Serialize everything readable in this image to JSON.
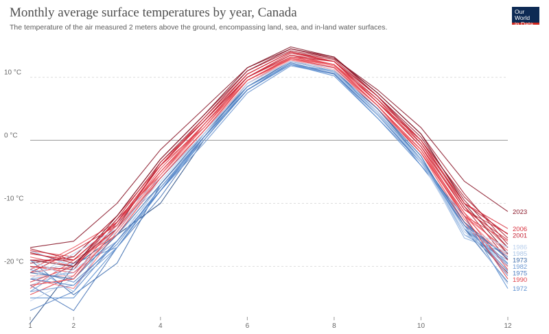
{
  "title": "Monthly average surface temperatures by year, Canada",
  "subtitle": "The temperature of the air measured 2 meters above the ground, encompassing land, sea, and in-land water surfaces.",
  "logo": {
    "line1": "Our World",
    "line2": "in Data"
  },
  "chart_data": {
    "type": "line",
    "title": "Monthly average surface temperatures by year, Canada",
    "xlabel": "",
    "ylabel": "",
    "xlim": [
      1,
      12
    ],
    "ylim": [
      -28,
      15.5
    ],
    "x_ticks": [
      1,
      2,
      4,
      6,
      8,
      10,
      12
    ],
    "y_ticks": [
      {
        "value": 10,
        "label": "10 °C"
      },
      {
        "value": 0,
        "label": "0 °C"
      },
      {
        "value": -10,
        "label": "-10 °C"
      },
      {
        "value": -20,
        "label": "-20 °C"
      }
    ],
    "grid": "horizontal dashed, solid zero line",
    "legend": "end labels on right",
    "colors": {
      "cold": "#4b7bc0",
      "light": "#a9c4e6",
      "warm": "#e8555f",
      "dark": "#8b1a2b"
    },
    "x": [
      1,
      2,
      3,
      4,
      5,
      6,
      7,
      8,
      9,
      10,
      11,
      12
    ],
    "series": [
      {
        "name": "1972",
        "color": "#5b8fd0",
        "values": [
          -25,
          -25,
          -17,
          -8,
          0,
          8,
          12,
          10.2,
          3.5,
          -4,
          -12,
          -23.5
        ]
      },
      {
        "name": "1973",
        "color": "#3a6aa8",
        "values": [
          -21,
          -22,
          -15,
          -7,
          1,
          8.5,
          12.5,
          11,
          5,
          -3,
          -13,
          -18.8
        ]
      },
      {
        "name": "1975",
        "color": "#4b7bc0",
        "values": [
          -22,
          -23,
          -16,
          -8,
          0.5,
          8,
          12.3,
          10.5,
          4,
          -3.5,
          -13.5,
          -20.7
        ]
      },
      {
        "name": "1982",
        "color": "#6e9ad3",
        "values": [
          -24,
          -23,
          -17,
          -7.5,
          0,
          8.5,
          12,
          11,
          4.5,
          -3,
          -14,
          -19.6
        ]
      },
      {
        "name": "1985",
        "color": "#a9c4e6",
        "values": [
          -19,
          -22,
          -14,
          -6,
          1,
          9,
          12.5,
          11,
          4,
          -3,
          -15,
          -17.8
        ]
      },
      {
        "name": "1986",
        "color": "#b9cfec",
        "values": [
          -22,
          -18,
          -14,
          -6.5,
          1,
          9,
          12.5,
          11.5,
          4.5,
          -3.5,
          -14,
          -16.9
        ]
      },
      {
        "name": "1990",
        "color": "#e0404a",
        "values": [
          -23,
          -22,
          -14,
          -6,
          1.5,
          9.5,
          13,
          11.5,
          5.5,
          -2,
          -12,
          -22
        ]
      },
      {
        "name": "2001",
        "color": "#c42234",
        "values": [
          -19,
          -19,
          -13,
          -4,
          3,
          10,
          13.5,
          12.5,
          7,
          -0.5,
          -10,
          -14.9
        ]
      },
      {
        "name": "2006",
        "color": "#d8303d",
        "values": [
          -18,
          -19,
          -13,
          -4,
          3.5,
          10.5,
          14,
          12.5,
          6,
          0,
          -10,
          -14
        ]
      },
      {
        "name": "2023",
        "color": "#8b1a2b",
        "values": [
          -17,
          -16,
          -10,
          -1.5,
          5,
          11.5,
          14.5,
          13,
          8,
          2,
          -6.5,
          -11.3
        ]
      },
      {
        "name": "",
        "color": "#2a4f85",
        "values": [
          -29,
          -20,
          -15,
          -10,
          0,
          8,
          12,
          10.5,
          4,
          -3,
          -14,
          -21
        ]
      },
      {
        "name": "",
        "color": "#4a77b8",
        "values": [
          -23,
          -27,
          -17,
          -9,
          0.5,
          8.5,
          12.2,
          10.8,
          4.5,
          -3,
          -13,
          -20
        ]
      },
      {
        "name": "",
        "color": "#5986c6",
        "values": [
          -27,
          -24,
          -16,
          -8,
          1,
          8.5,
          12.5,
          11,
          4.5,
          -4,
          -13,
          -21.5
        ]
      },
      {
        "name": "",
        "color": "#7aa3d8",
        "values": [
          -22,
          -21,
          -16,
          -7,
          1,
          9,
          12.5,
          11,
          5,
          -2.5,
          -15,
          -19
        ]
      },
      {
        "name": "",
        "color": "#8fb3e0",
        "values": [
          -17.5,
          -20,
          -12.5,
          -6,
          1.5,
          8.5,
          12,
          11,
          5,
          -3,
          -15.5,
          -18
        ]
      },
      {
        "name": "",
        "color": "#99bbe4",
        "values": [
          -20,
          -24,
          -13,
          -7.5,
          0.5,
          8,
          12,
          10.5,
          4,
          -3,
          -14,
          -20
        ]
      },
      {
        "name": "",
        "color": "#3f6fb0",
        "values": [
          -19,
          -24.5,
          -19.5,
          -7,
          0.5,
          9,
          12.5,
          11,
          5,
          -2.5,
          -14,
          -22.5
        ]
      },
      {
        "name": "",
        "color": "#c8d8ef",
        "values": [
          -25.5,
          -22,
          -15,
          -8,
          0.5,
          8,
          12,
          10.5,
          4.5,
          -3.5,
          -15,
          -17
        ]
      },
      {
        "name": "",
        "color": "#b0c8e8",
        "values": [
          -21,
          -19.5,
          -14.5,
          -6,
          1,
          8.5,
          12,
          11,
          4,
          -3,
          -13.5,
          -22.8
        ]
      },
      {
        "name": "",
        "color": "#6a95cf",
        "values": [
          -24,
          -19.5,
          -17,
          -8,
          -0.5,
          7.5,
          11.8,
          10.5,
          3.5,
          -3.5,
          -13,
          -19.5
        ]
      },
      {
        "name": "",
        "color": "#f27a82",
        "values": [
          -21,
          -20,
          -14,
          -5,
          2,
          9.5,
          12.8,
          11.5,
          5,
          -1.5,
          -12,
          -19
        ]
      },
      {
        "name": "",
        "color": "#ee6a73",
        "values": [
          -20,
          -21,
          -15,
          -6,
          1.5,
          9,
          13,
          12,
          5.5,
          -2,
          -11.5,
          -18
        ]
      },
      {
        "name": "",
        "color": "#e84c56",
        "values": [
          -18.5,
          -20,
          -13.5,
          -4.5,
          2.5,
          10,
          13.5,
          12,
          6,
          -1,
          -12,
          -16
        ]
      },
      {
        "name": "",
        "color": "#f48e94",
        "values": [
          -23,
          -22,
          -14,
          -6,
          1,
          9,
          12.5,
          11.5,
          5,
          -2,
          -13,
          -18.5
        ]
      },
      {
        "name": "",
        "color": "#e2424c",
        "values": [
          -17.5,
          -18.5,
          -12,
          -4,
          2,
          10,
          13.5,
          12,
          6.5,
          -1,
          -10.5,
          -17
        ]
      },
      {
        "name": "",
        "color": "#d43642",
        "values": [
          -22.5,
          -20,
          -12.5,
          -5.5,
          2.5,
          10,
          13.2,
          12.5,
          6,
          -0.5,
          -11,
          -14.8
        ]
      },
      {
        "name": "",
        "color": "#f15d66",
        "values": [
          -20.5,
          -17,
          -13,
          -5,
          2,
          9.5,
          13,
          11.8,
          5.5,
          -1.5,
          -12.5,
          -20
        ]
      },
      {
        "name": "",
        "color": "#ec5a63",
        "values": [
          -23.5,
          -19,
          -15,
          -6,
          1.5,
          9.5,
          13,
          12,
          5.5,
          -2,
          -12,
          -17.5
        ]
      },
      {
        "name": "",
        "color": "#f6a0a5",
        "values": [
          -21.5,
          -21.5,
          -14,
          -5.5,
          1.5,
          9,
          12.7,
          11.2,
          5,
          -2,
          -13.5,
          -18.2
        ]
      },
      {
        "name": "",
        "color": "#b01f30",
        "values": [
          -17.2,
          -19,
          -13,
          -4,
          3,
          10.5,
          14,
          12.8,
          7,
          0,
          -9,
          -15.5
        ]
      },
      {
        "name": "",
        "color": "#a41c2e",
        "values": [
          -19.5,
          -18.5,
          -12,
          -3,
          4,
          11,
          14.2,
          13,
          7.5,
          1,
          -8.5,
          -16.5
        ]
      },
      {
        "name": "",
        "color": "#9a1b2d",
        "values": [
          -17.8,
          -19.5,
          -14,
          -3.5,
          3.5,
          11,
          14.5,
          13.2,
          7,
          0.5,
          -9.5,
          -17
        ]
      },
      {
        "name": "",
        "color": "#bf2736",
        "values": [
          -20,
          -20.5,
          -12.5,
          -3.5,
          3,
          10.5,
          14,
          12.5,
          6.5,
          0,
          -10.5,
          -19
        ]
      },
      {
        "name": "",
        "color": "#7d1626",
        "values": [
          -19,
          -20,
          -12,
          -3,
          4,
          11.5,
          14.8,
          13.2,
          7.5,
          1,
          -10,
          -18
        ]
      },
      {
        "name": "",
        "color": "#cd2c3b",
        "values": [
          -21,
          -17.5,
          -13.5,
          -4,
          3,
          10,
          13.8,
          12.5,
          6,
          -1,
          -11,
          -15.8
        ]
      },
      {
        "name": "",
        "color": "#e3444f",
        "values": [
          -24.5,
          -21.5,
          -13,
          -5,
          2.5,
          9.5,
          13.2,
          12,
          5.5,
          -1.5,
          -11.5,
          -20.5
        ]
      },
      {
        "name": "",
        "color": "#f26b74",
        "values": [
          -22,
          -23.5,
          -14.5,
          -5.5,
          2,
          9.5,
          12.8,
          11.6,
          5,
          -2,
          -13,
          -21.2
        ]
      },
      {
        "name": "",
        "color": "#a8c2e6",
        "values": [
          -23,
          -20.5,
          -16,
          -7,
          0.5,
          8.5,
          12.2,
          10.8,
          4.2,
          -3.2,
          -14.5,
          -19.8
        ]
      },
      {
        "name": "",
        "color": "#5a88c8",
        "values": [
          -20.5,
          -22.5,
          -16.5,
          -7.5,
          0.5,
          8,
          12,
          10.6,
          4,
          -3.5,
          -13.5,
          -18.5
        ]
      }
    ]
  }
}
